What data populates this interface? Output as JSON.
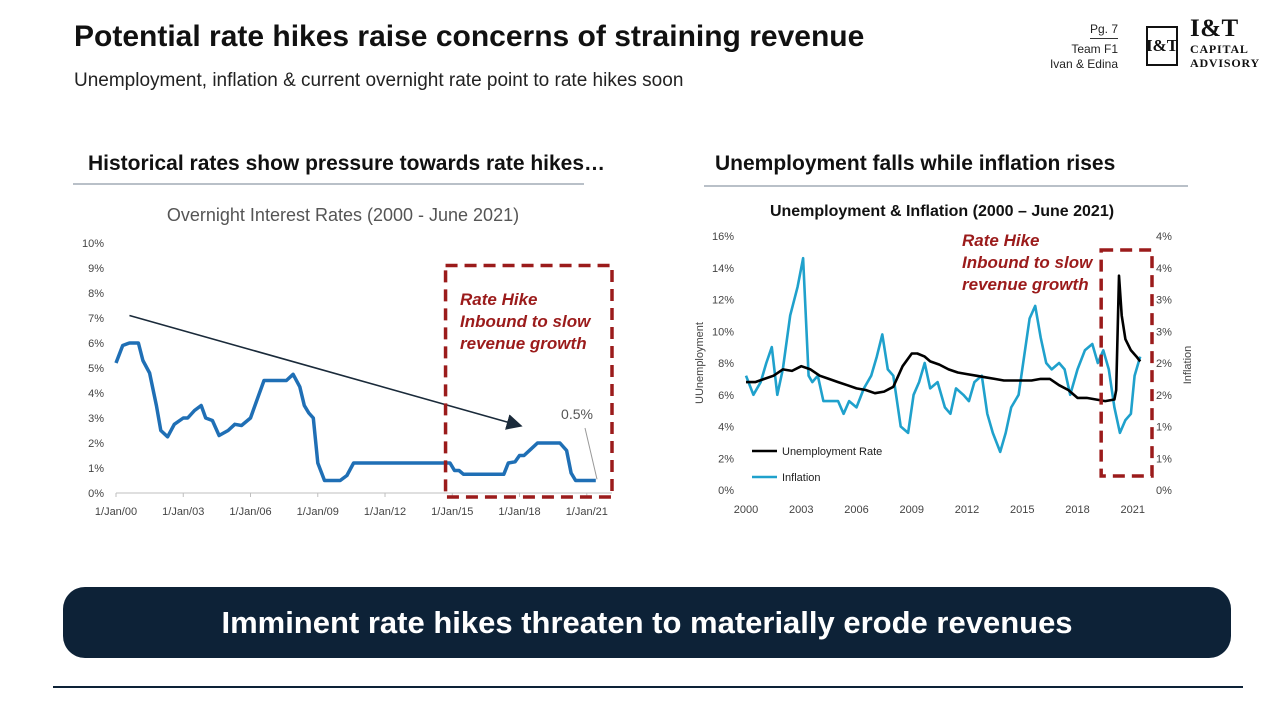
{
  "header": {
    "title": "Potential rate hikes raise concerns of straining revenue",
    "subtitle": "Unemployment, inflation & current overnight rate point to rate hikes soon",
    "page": "Pg. 7",
    "team": "Team F1",
    "authors": "Ivan & Edina"
  },
  "logo": {
    "monogram": "I&T",
    "name": "I&T",
    "line1": "CAPITAL",
    "line2": "ADVISORY"
  },
  "left_section": {
    "heading": "Historical rates show pressure towards rate hikes…"
  },
  "right_section": {
    "heading": "Unemployment falls while inflation rises"
  },
  "banner": {
    "text": "Imminent rate hikes threaten to materially erode revenues"
  },
  "colors": {
    "navy": "#0d2237",
    "line_blue": "#1f6fb5",
    "teal": "#1fa1cc",
    "dark_red": "#9b1b1b",
    "grey_rule": "#b9c0c8"
  },
  "chart_data": [
    {
      "type": "line",
      "title": "Overnight Interest Rates (2000 - June 2021)",
      "xlabel": "",
      "ylabel": "",
      "ylim": [
        0,
        10
      ],
      "y_ticks": [
        "0%",
        "1%",
        "2%",
        "3%",
        "4%",
        "5%",
        "6%",
        "7%",
        "8%",
        "9%",
        "10%"
      ],
      "x_ticks": [
        "1/Jan/00",
        "1/Jan/03",
        "1/Jan/06",
        "1/Jan/09",
        "1/Jan/12",
        "1/Jan/15",
        "1/Jan/18",
        "1/Jan/21"
      ],
      "x_range": [
        2000,
        2021.5
      ],
      "series": [
        {
          "x": [
            2000,
            2000.3,
            2000.6,
            2001.0,
            2001.2,
            2001.5,
            2001.8,
            2002.0,
            2002.3,
            2002.6,
            2003.0,
            2003.2,
            2003.5,
            2003.8,
            2004.0,
            2004.3,
            2004.6,
            2005.0,
            2005.3,
            2005.6,
            2006.0,
            2006.3,
            2006.6,
            2007.0,
            2007.3,
            2007.6,
            2007.9,
            2008.2,
            2008.4,
            2008.6,
            2008.8,
            2009.0,
            2009.3,
            2009.6,
            2010.0,
            2010.3,
            2010.6,
            2011,
            2012,
            2013,
            2014,
            2014.9,
            2015.1,
            2015.3,
            2015.5,
            2016,
            2017,
            2017.3,
            2017.5,
            2017.8,
            2018,
            2018.2,
            2018.5,
            2018.8,
            2019,
            2019.5,
            2019.8,
            2020.1,
            2020.3,
            2020.5,
            2021,
            2021.4
          ],
          "values": [
            5.2,
            5.9,
            6.0,
            6.0,
            5.3,
            4.8,
            3.5,
            2.5,
            2.25,
            2.75,
            3.0,
            3.0,
            3.3,
            3.5,
            3.0,
            2.9,
            2.3,
            2.5,
            2.75,
            2.7,
            3.0,
            3.75,
            4.5,
            4.5,
            4.5,
            4.5,
            4.75,
            4.25,
            3.5,
            3.2,
            3.0,
            1.2,
            0.5,
            0.5,
            0.5,
            0.7,
            1.2,
            1.2,
            1.2,
            1.2,
            1.2,
            1.2,
            0.9,
            0.9,
            0.75,
            0.75,
            0.75,
            0.75,
            1.2,
            1.25,
            1.5,
            1.5,
            1.75,
            2.0,
            2.0,
            2.0,
            2.0,
            1.7,
            0.8,
            0.5,
            0.5,
            0.5
          ]
        }
      ],
      "annotations": {
        "highlight_text": [
          "Rate Hike",
          "Inbound to slow",
          "revenue growth"
        ],
        "end_value_label": "0.5%",
        "trend_arrow_from": [
          2000.6,
          7.1
        ],
        "trend_arrow_to": [
          2018.0,
          2.7
        ],
        "highlight_x_range": [
          2014.7,
          2021.5
        ],
        "highlight_y_range": [
          0,
          9.1
        ]
      }
    },
    {
      "type": "line",
      "title": "Unemployment & Inflation (2000 – June 2021)",
      "xlabel": "",
      "ylabel": "UUnemployment",
      "y2label": "Inflation",
      "ylim": [
        0,
        16
      ],
      "y2lim": [
        0,
        4
      ],
      "y_ticks": [
        "0%",
        "2%",
        "4%",
        "6%",
        "8%",
        "10%",
        "12%",
        "14%",
        "16%"
      ],
      "y2_ticks": [
        "0%",
        "1%",
        "1%",
        "2%",
        "2%",
        "3%",
        "3%",
        "4%",
        "4%"
      ],
      "x_ticks": [
        "2000",
        "2003",
        "2006",
        "2009",
        "2012",
        "2015",
        "2018",
        "2021"
      ],
      "x_range": [
        2000,
        2021.5
      ],
      "legend": "bottom-left",
      "series": [
        {
          "name": "Unemployment Rate",
          "x": [
            2000,
            2000.5,
            2001,
            2001.5,
            2002,
            2002.5,
            2003,
            2003.5,
            2004,
            2004.5,
            2005,
            2005.5,
            2006,
            2006.5,
            2007,
            2007.5,
            2008,
            2008.5,
            2009,
            2009.3,
            2009.7,
            2010,
            2010.5,
            2011,
            2011.5,
            2012,
            2012.5,
            2013,
            2013.5,
            2014,
            2014.5,
            2015,
            2015.5,
            2016,
            2016.5,
            2017,
            2017.5,
            2018,
            2018.5,
            2019,
            2019.5,
            2020,
            2020.1,
            2020.25,
            2020.4,
            2020.6,
            2020.9,
            2021.2,
            2021.4
          ],
          "values": [
            6.8,
            6.8,
            7.0,
            7.2,
            7.6,
            7.5,
            7.8,
            7.6,
            7.2,
            7.0,
            6.8,
            6.6,
            6.4,
            6.3,
            6.1,
            6.2,
            6.5,
            7.8,
            8.6,
            8.6,
            8.4,
            8.1,
            7.9,
            7.6,
            7.4,
            7.3,
            7.2,
            7.1,
            7.0,
            6.9,
            6.9,
            6.9,
            6.9,
            7.0,
            7.0,
            6.6,
            6.3,
            5.8,
            5.8,
            5.7,
            5.6,
            5.7,
            6.3,
            13.5,
            11.0,
            9.5,
            8.8,
            8.4,
            8.1
          ]
        },
        {
          "name": "Inflation",
          "x": [
            2000,
            2000.4,
            2000.8,
            2001.1,
            2001.4,
            2001.7,
            2002.0,
            2002.4,
            2002.8,
            2003.1,
            2003.4,
            2003.6,
            2003.9,
            2004.2,
            2004.6,
            2005.0,
            2005.3,
            2005.6,
            2006.0,
            2006.4,
            2006.8,
            2007.1,
            2007.4,
            2007.7,
            2008.0,
            2008.4,
            2008.8,
            2009.1,
            2009.4,
            2009.7,
            2010.0,
            2010.4,
            2010.8,
            2011.1,
            2011.4,
            2011.8,
            2012.1,
            2012.4,
            2012.8,
            2013.1,
            2013.4,
            2013.8,
            2014.1,
            2014.4,
            2014.8,
            2015.1,
            2015.4,
            2015.7,
            2016.0,
            2016.3,
            2016.6,
            2017.0,
            2017.3,
            2017.6,
            2018.0,
            2018.4,
            2018.8,
            2019.1,
            2019.4,
            2019.7,
            2020.0,
            2020.3,
            2020.6,
            2020.9,
            2021.1,
            2021.4
          ],
          "values": [
            1.8,
            1.5,
            1.7,
            2.0,
            2.25,
            1.5,
            1.9,
            2.75,
            3.2,
            3.65,
            1.8,
            1.7,
            1.8,
            1.4,
            1.4,
            1.4,
            1.2,
            1.4,
            1.3,
            1.6,
            1.8,
            2.1,
            2.45,
            1.9,
            1.8,
            1.0,
            0.9,
            1.5,
            1.7,
            2.0,
            1.6,
            1.7,
            1.3,
            1.2,
            1.6,
            1.5,
            1.4,
            1.7,
            1.8,
            1.2,
            0.9,
            0.6,
            0.9,
            1.3,
            1.5,
            2.1,
            2.7,
            2.9,
            2.4,
            2.0,
            1.9,
            2.0,
            1.9,
            1.5,
            1.9,
            2.2,
            2.3,
            2.0,
            2.2,
            1.9,
            1.3,
            0.9,
            1.1,
            1.2,
            1.8,
            2.1
          ]
        }
      ],
      "annotations": {
        "highlight_text": [
          "Rate Hike",
          "Inbound to slow",
          "revenue growth"
        ],
        "highlight_x_range": [
          2019.5,
          2021.5
        ]
      }
    }
  ]
}
